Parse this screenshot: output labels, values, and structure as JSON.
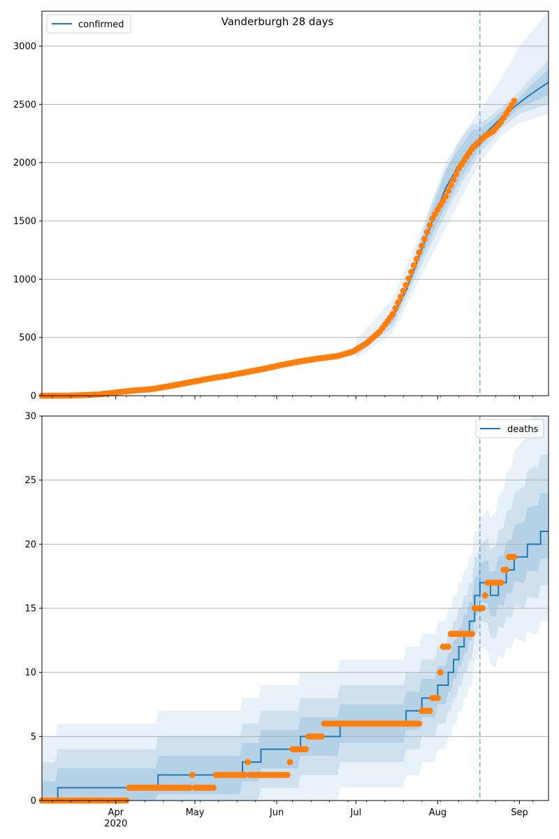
{
  "chart_data": [
    {
      "type": "line",
      "title": "Vanderburgh 28 days",
      "ylim": [
        0,
        3300
      ],
      "xlim": [
        "2020-03-04",
        "2020-09-12"
      ],
      "yticks": [
        0,
        500,
        1000,
        1500,
        2000,
        2500,
        3000
      ],
      "grid": "y",
      "legend_position": "top-left",
      "forecast_start": "2020-08-17",
      "colors": {
        "model": "#1f77b4",
        "observed": "#ff7f0e",
        "band": "#1f77b4",
        "grid": "#b0b0b0"
      },
      "series": [
        {
          "name": "confirmed",
          "kind": "model-line",
          "points": [
            [
              "2020-03-04",
              0
            ],
            [
              "2020-03-10",
              1
            ],
            [
              "2020-03-17",
              4
            ],
            [
              "2020-03-24",
              10
            ],
            [
              "2020-03-31",
              25
            ],
            [
              "2020-04-07",
              45
            ],
            [
              "2020-04-14",
              65
            ],
            [
              "2020-04-21",
              90
            ],
            [
              "2020-04-28",
              115
            ],
            [
              "2020-05-05",
              145
            ],
            [
              "2020-05-12",
              172
            ],
            [
              "2020-05-19",
              200
            ],
            [
              "2020-05-26",
              228
            ],
            [
              "2020-06-02",
              260
            ],
            [
              "2020-06-09",
              290
            ],
            [
              "2020-06-16",
              315
            ],
            [
              "2020-06-23",
              335
            ],
            [
              "2020-06-30",
              375
            ],
            [
              "2020-07-05",
              430
            ],
            [
              "2020-07-10",
              530
            ],
            [
              "2020-07-15",
              680
            ],
            [
              "2020-07-20",
              900
            ],
            [
              "2020-07-25",
              1200
            ],
            [
              "2020-07-30",
              1500
            ],
            [
              "2020-08-04",
              1780
            ],
            [
              "2020-08-09",
              1980
            ],
            [
              "2020-08-14",
              2150
            ],
            [
              "2020-08-19",
              2250
            ],
            [
              "2020-08-24",
              2360
            ],
            [
              "2020-08-29",
              2460
            ],
            [
              "2020-09-03",
              2550
            ],
            [
              "2020-09-08",
              2630
            ],
            [
              "2020-09-12",
              2690
            ]
          ],
          "bands": [
            {
              "opacity": 0.1,
              "lower": [
                [
                  "2020-07-01",
                  320
                ],
                [
                  "2020-07-15",
                  540
                ],
                [
                  "2020-08-01",
                  1300
                ],
                [
                  "2020-08-10",
                  1700
                ],
                [
                  "2020-08-17",
                  2000
                ],
                [
                  "2020-08-25",
                  2230
                ],
                [
                  "2020-09-01",
                  2340
                ],
                [
                  "2020-09-12",
                  2420
                ]
              ],
              "upper": [
                [
                  "2020-07-01",
                  480
                ],
                [
                  "2020-07-15",
                  830
                ],
                [
                  "2020-08-01",
                  1780
                ],
                [
                  "2020-08-10",
                  2230
                ],
                [
                  "2020-08-17",
                  2450
                ],
                [
                  "2020-08-25",
                  2720
                ],
                [
                  "2020-09-01",
                  3000
                ],
                [
                  "2020-09-12",
                  3300
                ]
              ]
            },
            {
              "opacity": 0.12,
              "lower": [
                [
                  "2020-07-01",
                  345
                ],
                [
                  "2020-07-15",
                  590
                ],
                [
                  "2020-08-01",
                  1420
                ],
                [
                  "2020-08-10",
                  1820
                ],
                [
                  "2020-08-17",
                  2080
                ],
                [
                  "2020-08-25",
                  2290
                ],
                [
                  "2020-09-01",
                  2420
                ],
                [
                  "2020-09-12",
                  2500
                ]
              ]
            },
            {
              "opacity": 0.15,
              "lower": [
                [
                  "2020-07-01",
                  365
                ],
                [
                  "2020-07-15",
                  630
                ],
                [
                  "2020-08-01",
                  1490
                ],
                [
                  "2020-08-10",
                  1880
                ],
                [
                  "2020-08-17",
                  2130
                ],
                [
                  "2020-08-25",
                  2330
                ],
                [
                  "2020-09-01",
                  2470
                ],
                [
                  "2020-09-12",
                  2580
                ]
              ]
            }
          ]
        },
        {
          "name": "observed-confirmed",
          "kind": "observed-points",
          "anchors": [
            [
              "2020-03-04",
              0
            ],
            [
              "2020-03-14",
              1
            ],
            [
              "2020-03-20",
              5
            ],
            [
              "2020-03-26",
              12
            ],
            [
              "2020-04-01",
              28
            ],
            [
              "2020-04-08",
              45
            ],
            [
              "2020-04-15",
              58
            ],
            [
              "2020-04-22",
              85
            ],
            [
              "2020-04-29",
              115
            ],
            [
              "2020-05-06",
              145
            ],
            [
              "2020-05-13",
              170
            ],
            [
              "2020-05-20",
              200
            ],
            [
              "2020-05-27",
              230
            ],
            [
              "2020-06-03",
              265
            ],
            [
              "2020-06-10",
              295
            ],
            [
              "2020-06-17",
              320
            ],
            [
              "2020-06-24",
              340
            ],
            [
              "2020-06-30",
              380
            ],
            [
              "2020-07-05",
              450
            ],
            [
              "2020-07-10",
              550
            ],
            [
              "2020-07-15",
              700
            ],
            [
              "2020-07-20",
              950
            ],
            [
              "2020-07-25",
              1230
            ],
            [
              "2020-07-30",
              1520
            ],
            [
              "2020-08-04",
              1710
            ],
            [
              "2020-08-09",
              1950
            ],
            [
              "2020-08-14",
              2120
            ],
            [
              "2020-08-19",
              2230
            ],
            [
              "2020-08-22",
              2270
            ],
            [
              "2020-08-25",
              2350
            ],
            [
              "2020-08-30",
              2530
            ]
          ]
        }
      ]
    },
    {
      "type": "line",
      "ylim": [
        0,
        30
      ],
      "xlim": [
        "2020-03-04",
        "2020-09-12"
      ],
      "yticks": [
        0,
        5,
        10,
        15,
        20,
        25,
        30
      ],
      "xticks": [
        {
          "date": "2020-04-01",
          "label": "Apr",
          "sublabel": "2020"
        },
        {
          "date": "2020-05-01",
          "label": "May"
        },
        {
          "date": "2020-06-01",
          "label": "Jun"
        },
        {
          "date": "2020-07-01",
          "label": "Jul"
        },
        {
          "date": "2020-08-01",
          "label": "Aug"
        },
        {
          "date": "2020-09-01",
          "label": "Sep"
        }
      ],
      "grid": "y",
      "legend_position": "top-right",
      "forecast_start": "2020-08-17",
      "colors": {
        "model": "#1f77b4",
        "observed": "#ff7f0e",
        "band": "#1f77b4",
        "grid": "#b0b0b0"
      },
      "series": [
        {
          "name": "deaths",
          "kind": "model-step",
          "steps": [
            [
              "2020-03-04",
              0
            ],
            [
              "2020-03-10",
              1
            ],
            [
              "2020-04-17",
              2
            ],
            [
              "2020-05-19",
              3
            ],
            [
              "2020-05-26",
              4
            ],
            [
              "2020-06-10",
              5
            ],
            [
              "2020-06-25",
              6
            ],
            [
              "2020-07-20",
              7
            ],
            [
              "2020-07-26",
              8
            ],
            [
              "2020-08-01",
              9
            ],
            [
              "2020-08-05",
              10
            ],
            [
              "2020-08-07",
              11
            ],
            [
              "2020-08-09",
              12
            ],
            [
              "2020-08-11",
              13
            ],
            [
              "2020-08-13",
              14
            ],
            [
              "2020-08-15",
              16
            ],
            [
              "2020-08-17",
              17
            ],
            [
              "2020-08-21",
              16
            ],
            [
              "2020-08-24",
              17
            ],
            [
              "2020-08-27",
              18
            ],
            [
              "2020-08-30",
              19
            ],
            [
              "2020-09-04",
              20
            ],
            [
              "2020-09-09",
              21
            ],
            [
              "2020-09-12",
              21
            ]
          ],
          "bands": [
            {
              "opacity": 0.1,
              "offset_lower": -5,
              "offset_upper": 5,
              "widen_after_forecast": 5
            },
            {
              "opacity": 0.12,
              "offset_lower": -3,
              "offset_upper": 3,
              "widen_after_forecast": 3
            },
            {
              "opacity": 0.15,
              "offset_lower": -1.5,
              "offset_upper": 1.5,
              "widen_after_forecast": 1.5
            }
          ]
        },
        {
          "name": "observed-deaths",
          "kind": "observed-points",
          "segments": [
            [
              "2020-03-04",
              "2020-04-05",
              0
            ],
            [
              "2020-04-06",
              "2020-04-29",
              1
            ],
            [
              "2020-04-30",
              "2020-04-30",
              2
            ],
            [
              "2020-05-01",
              "2020-05-08",
              1
            ],
            [
              "2020-05-09",
              "2020-05-20",
              2
            ],
            [
              "2020-05-21",
              "2020-05-21",
              3
            ],
            [
              "2020-05-22",
              "2020-06-05",
              2
            ],
            [
              "2020-06-06",
              "2020-06-06",
              3
            ],
            [
              "2020-06-07",
              "2020-06-12",
              4
            ],
            [
              "2020-06-13",
              "2020-06-18",
              5
            ],
            [
              "2020-06-19",
              "2020-07-25",
              6
            ],
            [
              "2020-07-26",
              "2020-07-29",
              7
            ],
            [
              "2020-07-30",
              "2020-08-01",
              8
            ],
            [
              "2020-08-02",
              "2020-08-02",
              10
            ],
            [
              "2020-08-03",
              "2020-08-05",
              12
            ],
            [
              "2020-08-06",
              "2020-08-14",
              13
            ],
            [
              "2020-08-15",
              "2020-08-18",
              15
            ],
            [
              "2020-08-19",
              "2020-08-19",
              16
            ],
            [
              "2020-08-20",
              "2020-08-25",
              17
            ],
            [
              "2020-08-26",
              "2020-08-27",
              18
            ],
            [
              "2020-08-28",
              "2020-08-30",
              19
            ]
          ]
        }
      ]
    }
  ]
}
